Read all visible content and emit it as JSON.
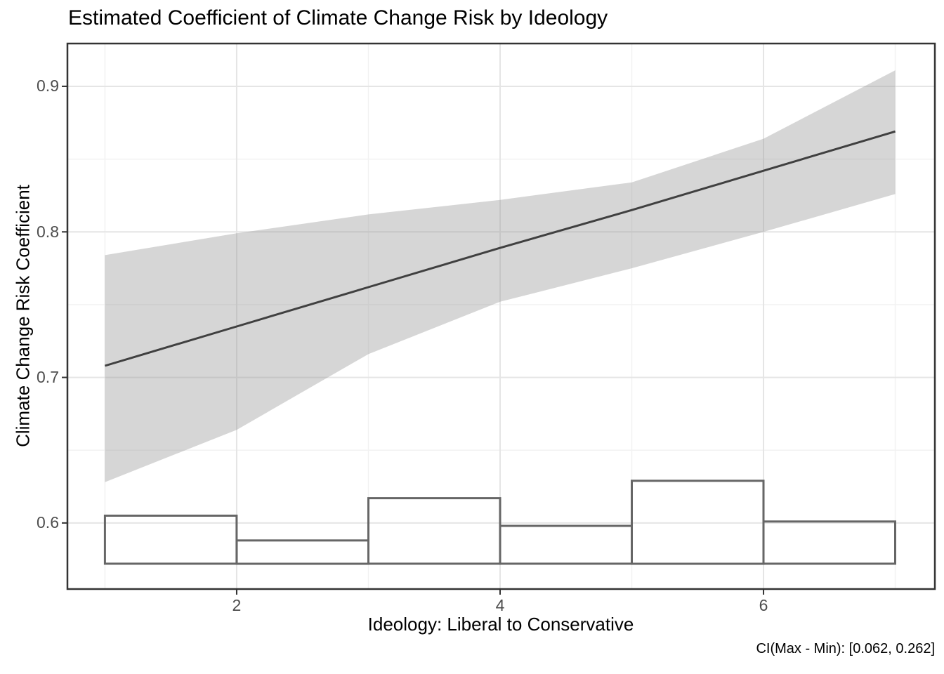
{
  "chart_data": {
    "type": "line",
    "title": "Estimated Coefficient of Climate Change Risk by Ideology",
    "xlabel": "Ideology: Liberal to Conservative",
    "ylabel": "Climate Change Risk Coefficient",
    "caption": "CI(Max - Min): [0.062, 0.262]",
    "xlim": [
      0.715,
      7.301
    ],
    "ylim": [
      0.5546,
      0.9294
    ],
    "x_ticks": [
      2,
      4,
      6
    ],
    "x_tick_labels": [
      "2",
      "4",
      "6"
    ],
    "x_minor_ticks": [
      1,
      3,
      5,
      7
    ],
    "y_ticks": [
      0.9,
      0.8,
      0.7,
      0.6
    ],
    "y_tick_labels": [
      "0.9",
      "0.8",
      "0.7",
      "0.6"
    ],
    "y_minor_ticks": [
      0.85,
      0.75,
      0.65
    ],
    "grid": "major and minor, light gray, on white panel with dark border",
    "legend": "none",
    "series": [
      {
        "name": "estimated_coefficient_line",
        "type": "line",
        "x": [
          1,
          2,
          3,
          4,
          5,
          6,
          7
        ],
        "y": [
          0.708,
          0.735,
          0.762,
          0.789,
          0.815,
          0.842,
          0.869
        ]
      },
      {
        "name": "confidence_interval_ribbon",
        "type": "area",
        "x": [
          1,
          2,
          3,
          4,
          5,
          6,
          7
        ],
        "upper": [
          0.784,
          0.799,
          0.812,
          0.822,
          0.834,
          0.864,
          0.911
        ],
        "lower": [
          0.628,
          0.664,
          0.716,
          0.752,
          0.775,
          0.8,
          0.826
        ]
      },
      {
        "name": "ideology_distribution_histogram",
        "type": "bar",
        "bin_edges": [
          1,
          2,
          3,
          4,
          5,
          6,
          7
        ],
        "bar_tops": [
          0.605,
          0.588,
          0.617,
          0.598,
          0.629,
          0.601
        ],
        "bar_base": 0.572
      }
    ],
    "colors": {
      "line": "#404040",
      "ribbon": "rgba(153,153,153,0.4)",
      "bar_stroke": "#666666",
      "bar_fill": "none",
      "panel_border": "#333333",
      "grid_major": "#E5E5E5",
      "grid_minor": "#F2F2F2",
      "tick_mark": "#333333",
      "tick_label": "#4D4D4D",
      "background": "#FFFFFF"
    }
  }
}
